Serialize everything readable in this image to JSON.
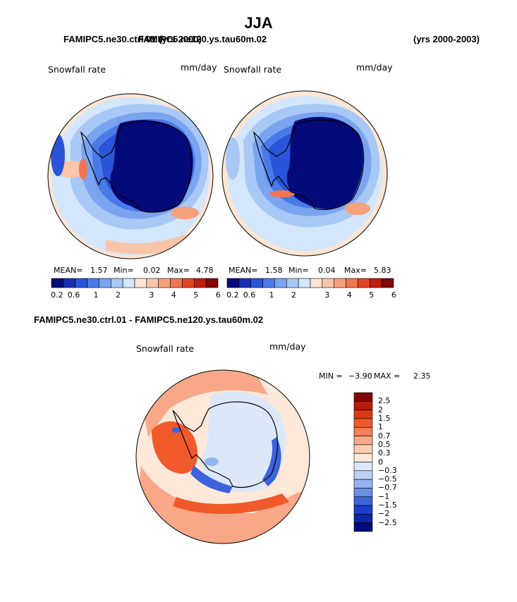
{
  "header": {
    "season": "JJA",
    "case_title_left": "FAMIPC5.ne30.ctrl.01 (yrs 2000)",
    "case_title_right_overlap": "FAMIPC5.ne120.ys.tau60m.02",
    "years_right": "(yrs 2000-2003)"
  },
  "panels": [
    {
      "variable": "Snowfall rate",
      "units": "mm/day",
      "stats": {
        "mean_label": "MEAN=",
        "mean": "1.57",
        "min_label": "Min=",
        "min": "0.02",
        "max_label": "Max=",
        "max": "4.78"
      }
    },
    {
      "variable": "Snowfall rate",
      "units": "mm/day",
      "stats": {
        "mean_label": "MEAN=",
        "mean": "1.58",
        "min_label": "Min=",
        "min": "0.04",
        "max_label": "Max=",
        "max": "5.83"
      }
    }
  ],
  "colorbar": {
    "colors": [
      "#050a7a",
      "#1a2fb0",
      "#2a55d8",
      "#4a7ae8",
      "#7aa4f0",
      "#a8c8f5",
      "#d3e6fb",
      "#fde5d3",
      "#f9c5a8",
      "#f5a17a",
      "#f07550",
      "#e04525",
      "#c01e0e",
      "#820808"
    ],
    "labels": [
      "0.2",
      "0.6",
      "1",
      "2",
      "3",
      "4",
      "5",
      "6"
    ]
  },
  "difference": {
    "title": "FAMIPC5.ne30.ctrl.01 - FAMIPC5.ne120.ys.tau60m.02",
    "variable": "Snowfall rate",
    "units": "mm/day",
    "min_label": "MIN =",
    "min": "−3.90",
    "max_label": "MAX =",
    "max": "2.35",
    "colors": [
      "#820808",
      "#b51a0a",
      "#d93a14",
      "#f05a2a",
      "#f5805a",
      "#f8a888",
      "#fbcbb2",
      "#fde8da",
      "#dce8fa",
      "#bdd2f5",
      "#94b3ee",
      "#6b8fe6",
      "#3d63dc",
      "#1c3ec8",
      "#0d25a8",
      "#050a7a"
    ],
    "labels": [
      "2.5",
      "2",
      "1.5",
      "1",
      "0.7",
      "0.5",
      "0.3",
      "0",
      "−0.3",
      "−0.5",
      "−0.7",
      "−1",
      "−1.5",
      "−2",
      "−2.5"
    ]
  }
}
